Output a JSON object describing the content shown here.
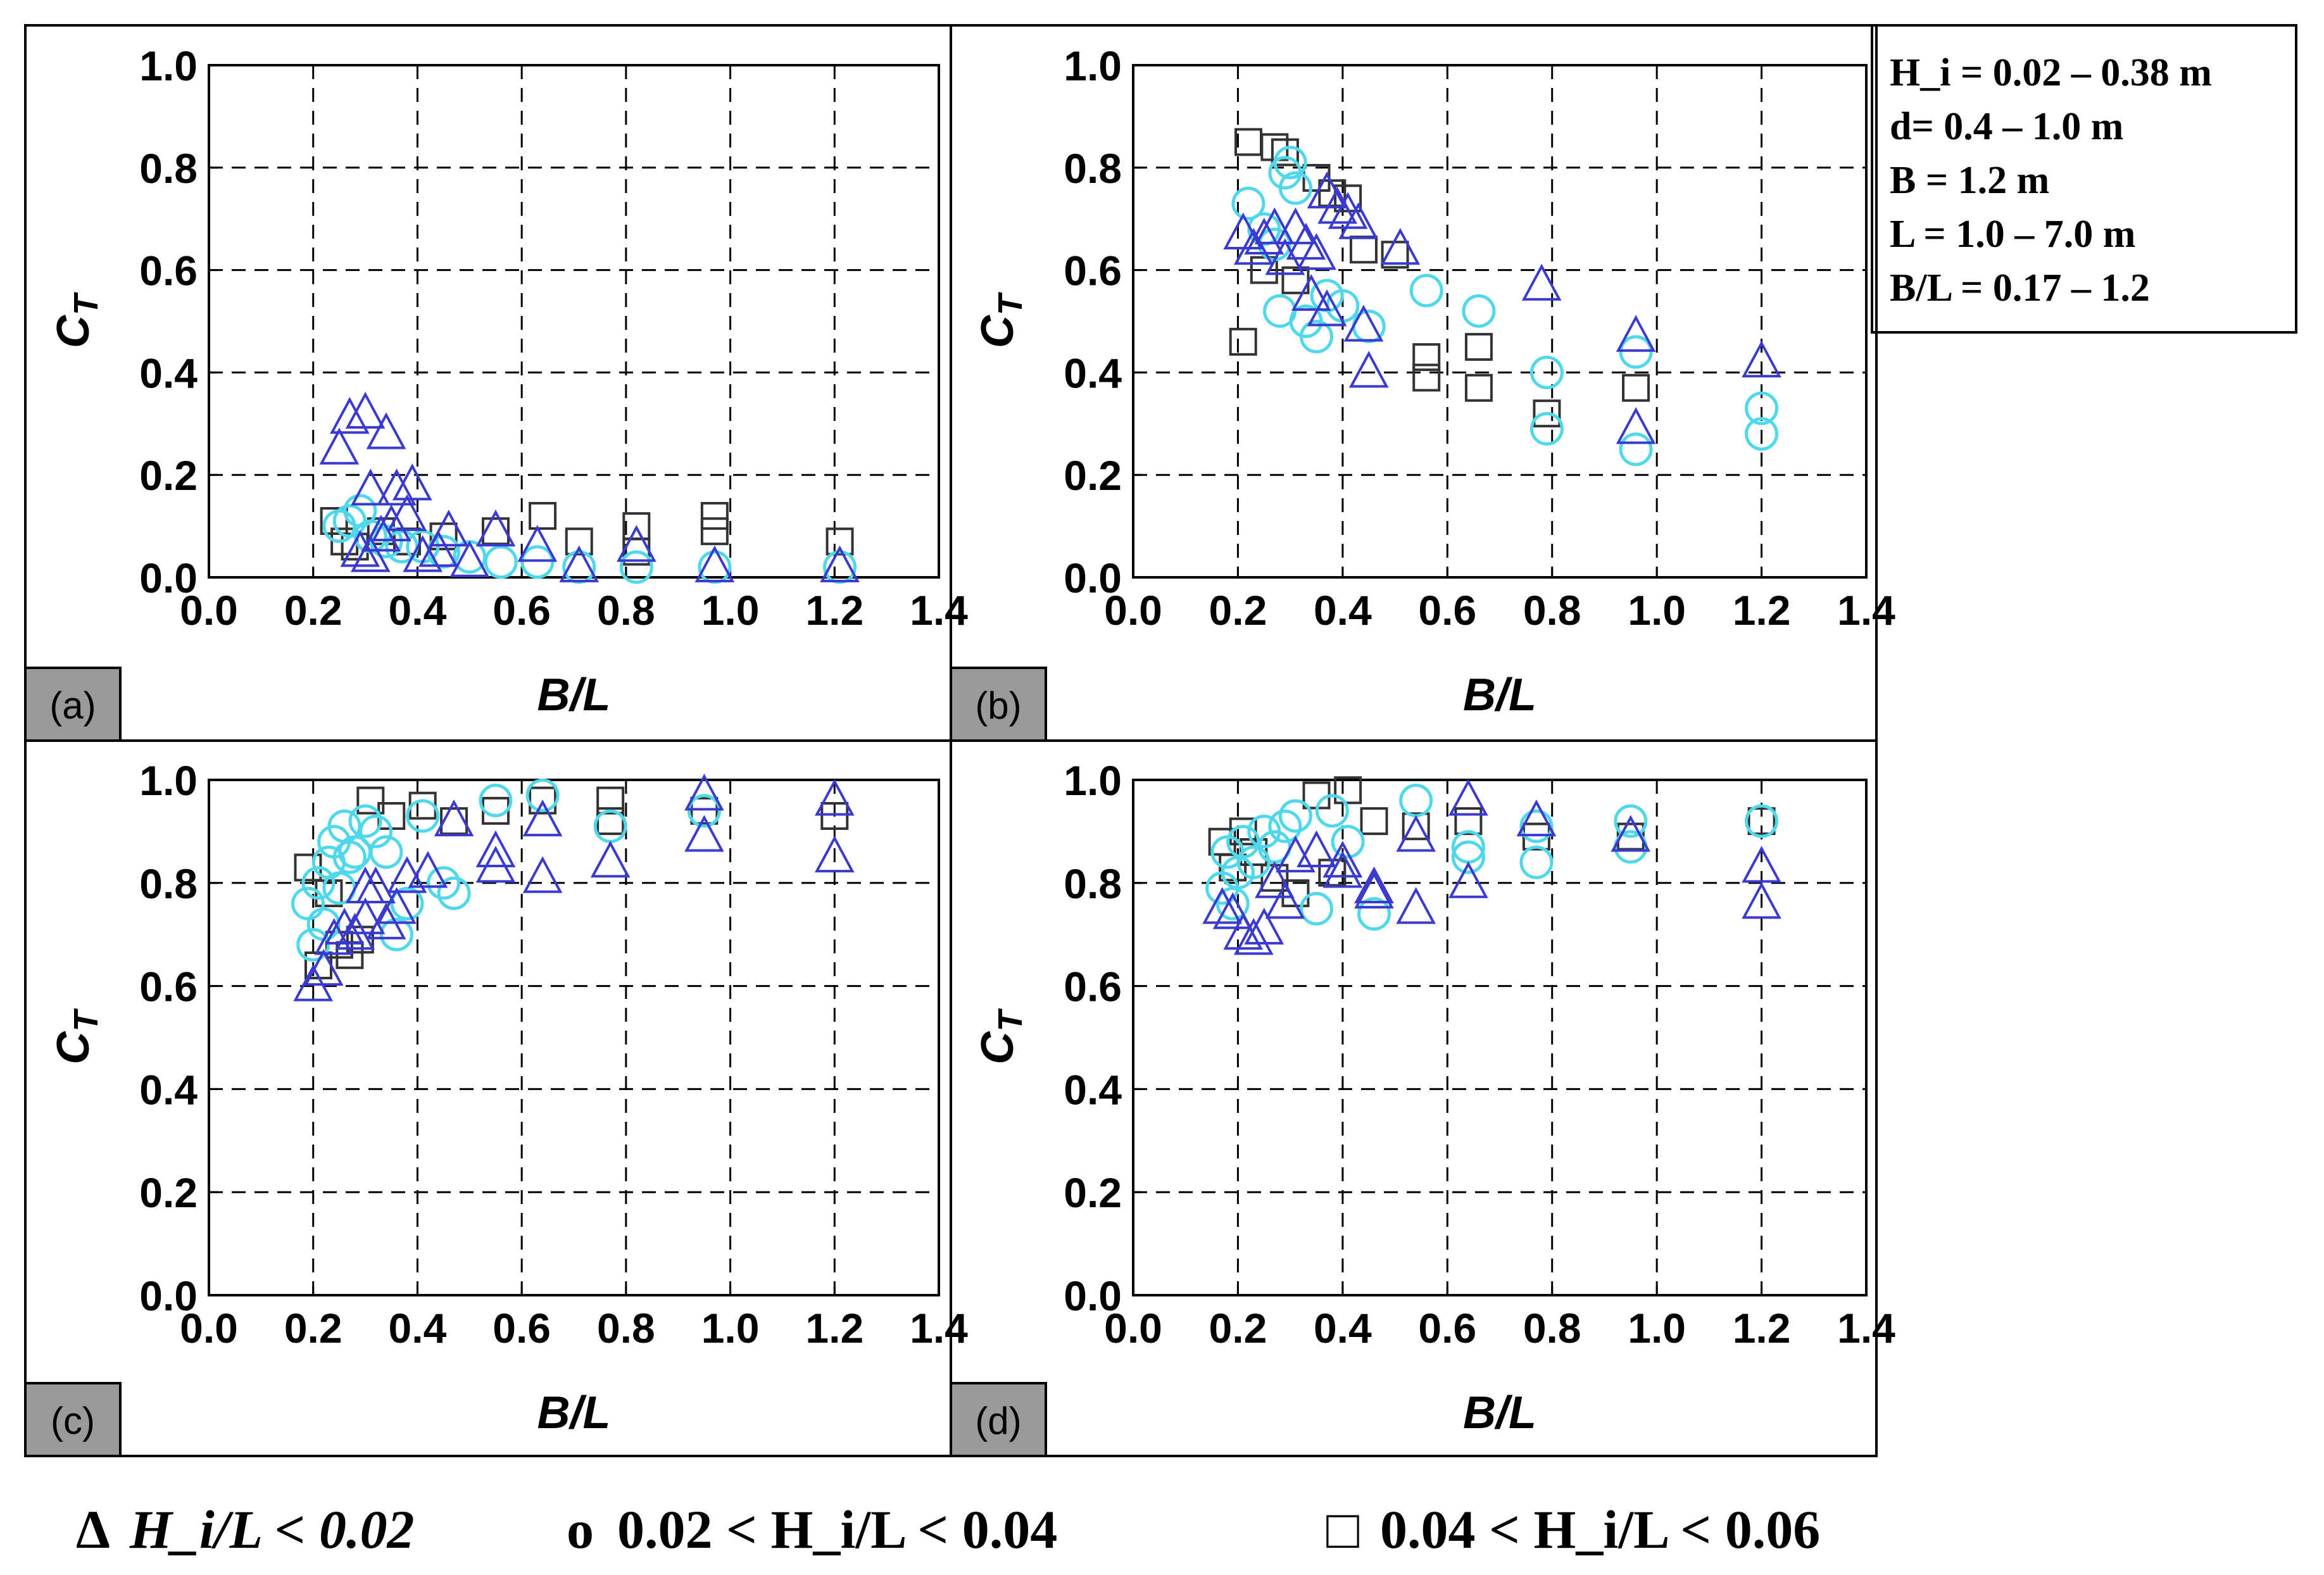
{
  "colors": {
    "triangle": "#3a3ad0",
    "circle": "#4fd8ec",
    "square": "#333333"
  },
  "info_box": {
    "lines": [
      "H_i = 0.02 – 0.38 m",
      "d= 0.4 – 1.0 m",
      "B = 1.2 m",
      "L = 1.0 – 7.0 m",
      "B/L = 0.17 – 1.2"
    ]
  },
  "legend": [
    {
      "symbol": "Δ",
      "label": "H_i/L < 0.02",
      "series": "triangle"
    },
    {
      "symbol": "o",
      "label": "0.02 < H_i/L < 0.04",
      "series": "circle"
    },
    {
      "symbol": "□",
      "label": "0.04 < H_i/L < 0.06",
      "series": "square"
    }
  ],
  "chart_data": [
    {
      "type": "scatter",
      "panel": "(a)",
      "xlabel": "B/L",
      "ylabel": "C_T",
      "xlim": [
        0,
        1.4
      ],
      "ylim": [
        0,
        1.0
      ],
      "xticks": [
        "0.0",
        "0.2",
        "0.4",
        "0.6",
        "0.8",
        "1.0",
        "1.2",
        "1.4"
      ],
      "yticks": [
        "0.0",
        "0.2",
        "0.4",
        "0.6",
        "0.8",
        "1.0"
      ],
      "series": [
        {
          "name": "triangle",
          "x": [
            0.25,
            0.27,
            0.3,
            0.34,
            0.36,
            0.39,
            0.31,
            0.33,
            0.29,
            0.35,
            0.38,
            0.41,
            0.46,
            0.55,
            0.63,
            0.71,
            0.82,
            0.97,
            1.21,
            0.31,
            0.44,
            0.5
          ],
          "y": [
            0.25,
            0.31,
            0.32,
            0.28,
            0.17,
            0.18,
            0.17,
            0.08,
            0.05,
            0.1,
            0.12,
            0.04,
            0.09,
            0.09,
            0.06,
            0.02,
            0.06,
            0.02,
            0.02,
            0.04,
            0.05,
            0.03
          ]
        },
        {
          "name": "circle",
          "x": [
            0.25,
            0.27,
            0.29,
            0.31,
            0.34,
            0.37,
            0.41,
            0.45,
            0.5,
            0.56,
            0.63,
            0.71,
            0.82,
            0.97,
            1.21
          ],
          "y": [
            0.1,
            0.11,
            0.13,
            0.08,
            0.07,
            0.06,
            0.06,
            0.05,
            0.04,
            0.03,
            0.03,
            0.02,
            0.02,
            0.02,
            0.02
          ]
        },
        {
          "name": "square",
          "x": [
            0.24,
            0.26,
            0.28,
            0.33,
            0.38,
            0.45,
            0.55,
            0.64,
            0.71,
            0.82,
            0.97,
            1.21,
            0.82,
            0.97
          ],
          "y": [
            0.11,
            0.07,
            0.06,
            0.09,
            0.07,
            0.08,
            0.09,
            0.12,
            0.07,
            0.1,
            0.12,
            0.07,
            0.05,
            0.09
          ]
        }
      ]
    },
    {
      "type": "scatter",
      "panel": "(b)",
      "xlabel": "B/L",
      "ylabel": "C_T",
      "xlim": [
        0,
        1.4
      ],
      "ylim": [
        0,
        1.0
      ],
      "xticks": [
        "0.0",
        "0.2",
        "0.4",
        "0.6",
        "0.8",
        "1.0",
        "1.2",
        "1.4"
      ],
      "yticks": [
        "0.0",
        "0.2",
        "0.4",
        "0.6",
        "0.8",
        "1.0"
      ],
      "series": [
        {
          "name": "triangle",
          "x": [
            0.21,
            0.23,
            0.25,
            0.27,
            0.29,
            0.31,
            0.33,
            0.35,
            0.37,
            0.39,
            0.41,
            0.43,
            0.45,
            0.51,
            0.78,
            0.96,
            0.96,
            1.2,
            0.34,
            0.37,
            0.44
          ],
          "y": [
            0.67,
            0.64,
            0.66,
            0.68,
            0.62,
            0.68,
            0.65,
            0.63,
            0.75,
            0.72,
            0.71,
            0.69,
            0.4,
            0.64,
            0.57,
            0.47,
            0.29,
            0.42,
            0.55,
            0.52,
            0.49
          ]
        },
        {
          "name": "circle",
          "x": [
            0.22,
            0.25,
            0.27,
            0.28,
            0.29,
            0.3,
            0.31,
            0.33,
            0.35,
            0.37,
            0.4,
            0.45,
            0.56,
            0.66,
            0.79,
            0.79,
            0.96,
            0.96,
            1.2,
            1.2
          ],
          "y": [
            0.73,
            0.68,
            0.65,
            0.52,
            0.79,
            0.81,
            0.76,
            0.5,
            0.47,
            0.55,
            0.53,
            0.49,
            0.56,
            0.52,
            0.4,
            0.29,
            0.44,
            0.25,
            0.33,
            0.28
          ]
        },
        {
          "name": "square",
          "x": [
            0.21,
            0.22,
            0.25,
            0.27,
            0.29,
            0.31,
            0.35,
            0.38,
            0.41,
            0.44,
            0.5,
            0.56,
            0.56,
            0.66,
            0.66,
            0.79,
            0.96
          ],
          "y": [
            0.46,
            0.85,
            0.6,
            0.84,
            0.83,
            0.58,
            0.78,
            0.75,
            0.74,
            0.64,
            0.63,
            0.43,
            0.39,
            0.45,
            0.37,
            0.32,
            0.37
          ]
        }
      ]
    },
    {
      "type": "scatter",
      "panel": "(c)",
      "xlabel": "B/L",
      "ylabel": "C_T",
      "xlim": [
        0,
        1.4
      ],
      "ylim": [
        0,
        1.0
      ],
      "xticks": [
        "0.0",
        "0.2",
        "0.4",
        "0.6",
        "0.8",
        "1.0",
        "1.2",
        "1.4"
      ],
      "yticks": [
        "0.0",
        "0.2",
        "0.4",
        "0.6",
        "0.8",
        "1.0"
      ],
      "series": [
        {
          "name": "triangle",
          "x": [
            0.2,
            0.22,
            0.24,
            0.26,
            0.28,
            0.3,
            0.32,
            0.34,
            0.36,
            0.38,
            0.42,
            0.47,
            0.55,
            0.64,
            0.77,
            0.95,
            1.2,
            0.55,
            0.64,
            0.95,
            1.2,
            0.3
          ],
          "y": [
            0.6,
            0.63,
            0.69,
            0.71,
            0.7,
            0.73,
            0.79,
            0.72,
            0.75,
            0.81,
            0.82,
            0.92,
            0.86,
            0.92,
            0.84,
            0.97,
            0.96,
            0.83,
            0.81,
            0.89,
            0.85,
            0.79
          ]
        },
        {
          "name": "circle",
          "x": [
            0.19,
            0.2,
            0.21,
            0.22,
            0.23,
            0.24,
            0.25,
            0.26,
            0.27,
            0.28,
            0.3,
            0.32,
            0.34,
            0.36,
            0.38,
            0.41,
            0.45,
            0.47,
            0.55,
            0.64,
            0.77,
            0.95
          ],
          "y": [
            0.76,
            0.68,
            0.8,
            0.72,
            0.84,
            0.88,
            0.79,
            0.91,
            0.85,
            0.86,
            0.92,
            0.9,
            0.86,
            0.7,
            0.76,
            0.93,
            0.8,
            0.78,
            0.96,
            0.97,
            0.91,
            0.94
          ]
        },
        {
          "name": "square",
          "x": [
            0.19,
            0.21,
            0.23,
            0.25,
            0.27,
            0.29,
            0.31,
            0.35,
            0.41,
            0.47,
            0.55,
            0.64,
            0.77,
            0.95,
            1.2,
            0.77
          ],
          "y": [
            0.83,
            0.64,
            0.78,
            0.68,
            0.66,
            0.69,
            0.96,
            0.93,
            0.95,
            0.92,
            0.94,
            0.96,
            0.96,
            0.94,
            0.93,
            0.92
          ]
        }
      ]
    },
    {
      "type": "scatter",
      "panel": "(d)",
      "xlabel": "B/L",
      "ylabel": "C_T",
      "xlim": [
        0,
        1.4
      ],
      "ylim": [
        0,
        1.0
      ],
      "xticks": [
        "0.0",
        "0.2",
        "0.4",
        "0.6",
        "0.8",
        "1.0",
        "1.2",
        "1.4"
      ],
      "yticks": [
        "0.0",
        "0.2",
        "0.4",
        "0.6",
        "0.8",
        "1.0"
      ],
      "series": [
        {
          "name": "triangle",
          "x": [
            0.17,
            0.19,
            0.21,
            0.23,
            0.25,
            0.27,
            0.29,
            0.31,
            0.35,
            0.4,
            0.46,
            0.54,
            0.64,
            0.77,
            0.95,
            1.2,
            1.2,
            0.64,
            0.54,
            0.46,
            0.4
          ],
          "y": [
            0.75,
            0.74,
            0.7,
            0.69,
            0.71,
            0.8,
            0.76,
            0.85,
            0.86,
            0.84,
            0.78,
            0.75,
            0.96,
            0.92,
            0.89,
            0.83,
            0.76,
            0.8,
            0.89,
            0.79,
            0.82
          ]
        },
        {
          "name": "circle",
          "x": [
            0.17,
            0.18,
            0.19,
            0.2,
            0.21,
            0.23,
            0.25,
            0.27,
            0.29,
            0.31,
            0.35,
            0.38,
            0.41,
            0.46,
            0.54,
            0.64,
            0.64,
            0.77,
            0.77,
            0.95,
            0.95,
            1.2
          ],
          "y": [
            0.79,
            0.86,
            0.76,
            0.82,
            0.88,
            0.84,
            0.9,
            0.87,
            0.91,
            0.93,
            0.75,
            0.94,
            0.88,
            0.74,
            0.96,
            0.87,
            0.85,
            0.91,
            0.84,
            0.92,
            0.87,
            0.92
          ]
        },
        {
          "name": "square",
          "x": [
            0.17,
            0.19,
            0.21,
            0.23,
            0.27,
            0.31,
            0.35,
            0.38,
            0.41,
            0.46,
            0.54,
            0.64,
            0.77,
            0.95,
            1.2
          ],
          "y": [
            0.88,
            0.83,
            0.9,
            0.86,
            0.81,
            0.78,
            0.97,
            0.82,
            0.98,
            0.92,
            0.91,
            0.92,
            0.89,
            0.89,
            0.92
          ]
        }
      ]
    }
  ]
}
